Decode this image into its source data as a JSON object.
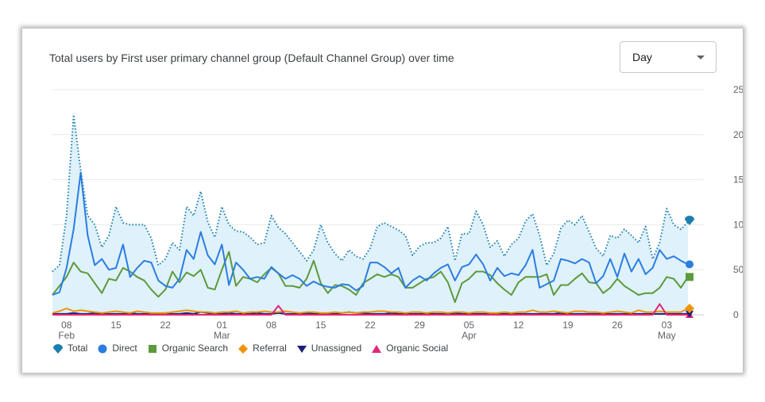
{
  "card": {
    "title": "Total users by First user primary channel group (Default Channel Group) over time",
    "granularity_select": "Day"
  },
  "colors": {
    "Total": "#1a7fae",
    "Direct": "#2b7de1",
    "Organic Search": "#5c9a3c",
    "Referral": "#f0940a",
    "Unassigned": "#1f1f7a",
    "Organic Social": "#e0287a",
    "band": "#dff1fb",
    "grid": "#e5e8eb"
  },
  "legend": [
    {
      "name": "Total",
      "icon": "teardrop-marker-icon"
    },
    {
      "name": "Direct",
      "icon": "circle-marker-icon"
    },
    {
      "name": "Organic Search",
      "icon": "square-marker-icon"
    },
    {
      "name": "Referral",
      "icon": "diamond-marker-icon"
    },
    {
      "name": "Unassigned",
      "icon": "triangle-down-marker-icon"
    },
    {
      "name": "Organic Social",
      "icon": "triangle-up-marker-icon"
    }
  ],
  "chart_data": {
    "type": "line",
    "title": "Total users by First user primary channel group (Default Channel Group) over time",
    "xlabel": "",
    "ylabel": "",
    "x_start": "2024-02-06",
    "x_end": "2024-05-06",
    "x_ticks": [
      {
        "date": "2024-02-08",
        "day": "08",
        "month": "Feb"
      },
      {
        "date": "2024-02-15",
        "day": "15",
        "month": ""
      },
      {
        "date": "2024-02-22",
        "day": "22",
        "month": ""
      },
      {
        "date": "2024-03-01",
        "day": "01",
        "month": "Mar"
      },
      {
        "date": "2024-03-08",
        "day": "08",
        "month": ""
      },
      {
        "date": "2024-03-15",
        "day": "15",
        "month": ""
      },
      {
        "date": "2024-03-22",
        "day": "22",
        "month": ""
      },
      {
        "date": "2024-03-29",
        "day": "29",
        "month": ""
      },
      {
        "date": "2024-04-05",
        "day": "05",
        "month": "Apr"
      },
      {
        "date": "2024-04-12",
        "day": "12",
        "month": ""
      },
      {
        "date": "2024-04-19",
        "day": "19",
        "month": ""
      },
      {
        "date": "2024-04-26",
        "day": "26",
        "month": ""
      },
      {
        "date": "2024-05-03",
        "day": "03",
        "month": "May"
      }
    ],
    "y_ticks": [
      0,
      50,
      100,
      150,
      200,
      250
    ],
    "ylim": [
      0,
      250
    ],
    "y_axis_side": "right",
    "grid": true,
    "legend_position": "bottom",
    "series": [
      {
        "name": "Total",
        "style": "dotted",
        "fill": true,
        "values": [
          48,
          55,
          110,
          222,
          160,
          110,
          100,
          75,
          88,
          120,
          102,
          100,
          100,
          100,
          85,
          55,
          62,
          80,
          72,
          120,
          110,
          137,
          103,
          86,
          120,
          100,
          93,
          92,
          86,
          78,
          80,
          110,
          97,
          90,
          80,
          70,
          60,
          72,
          100,
          80,
          68,
          60,
          72,
          65,
          62,
          74,
          98,
          102,
          98,
          94,
          88,
          66,
          76,
          80,
          80,
          85,
          98,
          60,
          90,
          90,
          115,
          100,
          75,
          82,
          65,
          78,
          85,
          104,
          112,
          88,
          55,
          68,
          96,
          105,
          100,
          110,
          92,
          74,
          65,
          88,
          85,
          95,
          88,
          80,
          98,
          62,
          80,
          118,
          100,
          95,
          103
        ]
      },
      {
        "name": "Direct",
        "style": "solid",
        "values": [
          22,
          25,
          52,
          95,
          158,
          88,
          55,
          62,
          50,
          52,
          78,
          42,
          52,
          60,
          58,
          38,
          32,
          30,
          40,
          72,
          62,
          92,
          66,
          56,
          78,
          33,
          58,
          50,
          40,
          42,
          40,
          53,
          46,
          40,
          44,
          40,
          32,
          37,
          33,
          31,
          30,
          34,
          33,
          27,
          32,
          58,
          58,
          53,
          46,
          52,
          30,
          38,
          43,
          38,
          46,
          52,
          56,
          38,
          53,
          56,
          67,
          56,
          38,
          52,
          43,
          46,
          44,
          55,
          72,
          30,
          34,
          38,
          62,
          60,
          57,
          62,
          58,
          35,
          43,
          62,
          42,
          68,
          48,
          62,
          45,
          52,
          72,
          62,
          65,
          60,
          56
        ]
      },
      {
        "name": "Organic Search",
        "style": "solid",
        "values": [
          22,
          32,
          42,
          58,
          48,
          46,
          35,
          24,
          40,
          38,
          52,
          48,
          42,
          38,
          28,
          20,
          28,
          48,
          36,
          47,
          43,
          50,
          30,
          28,
          50,
          70,
          32,
          42,
          40,
          36,
          45,
          52,
          46,
          32,
          32,
          30,
          40,
          60,
          35,
          24,
          33,
          32,
          28,
          22,
          35,
          40,
          45,
          42,
          45,
          42,
          30,
          30,
          35,
          40,
          42,
          48,
          36,
          14,
          35,
          40,
          48,
          48,
          44,
          35,
          28,
          22,
          36,
          42,
          42,
          42,
          45,
          22,
          33,
          33,
          40,
          46,
          36,
          35,
          24,
          30,
          40,
          32,
          27,
          22,
          24,
          24,
          30,
          42,
          40,
          30,
          42
        ]
      },
      {
        "name": "Referral",
        "style": "solid",
        "values": [
          2,
          4,
          7,
          4,
          5,
          4,
          3,
          2,
          3,
          4,
          3,
          2,
          4,
          3,
          2,
          2,
          2,
          3,
          4,
          5,
          4,
          3,
          3,
          2,
          3,
          3,
          4,
          2,
          3,
          3,
          4,
          3,
          3,
          4,
          3,
          2,
          3,
          3,
          2,
          2,
          3,
          2,
          3,
          2,
          3,
          3,
          4,
          4,
          3,
          3,
          2,
          3,
          3,
          2,
          3,
          3,
          2,
          3,
          3,
          2,
          3,
          3,
          2,
          2,
          3,
          2,
          3,
          3,
          5,
          3,
          3,
          4,
          3,
          2,
          4,
          4,
          3,
          3,
          2,
          3,
          4,
          3,
          2,
          5,
          3,
          3,
          4,
          3,
          3,
          3,
          7
        ]
      },
      {
        "name": "Unassigned",
        "style": "solid",
        "values": [
          1,
          1,
          1,
          2,
          1,
          1,
          2,
          1,
          1,
          1,
          1,
          2,
          1,
          1,
          1,
          1,
          2,
          1,
          1,
          2,
          1,
          3,
          2,
          1,
          1,
          2,
          1,
          1,
          1,
          2,
          1,
          1,
          2,
          1,
          1,
          1,
          2,
          1,
          1,
          1,
          1,
          2,
          3,
          2,
          2,
          1,
          1,
          1,
          2,
          1,
          1,
          1,
          1,
          2,
          1,
          1,
          1,
          2,
          1,
          1,
          1,
          1,
          1,
          1,
          1,
          1,
          1,
          1,
          1,
          1,
          1,
          1,
          2,
          1,
          1,
          1,
          1,
          1,
          1,
          1,
          1,
          1,
          1,
          1,
          1,
          1,
          1,
          1,
          1,
          1,
          1
        ]
      },
      {
        "name": "Organic Social",
        "style": "solid",
        "values": [
          0,
          0,
          0,
          0,
          0,
          0,
          0,
          0,
          0,
          0,
          0,
          0,
          0,
          0,
          0,
          0,
          0,
          0,
          0,
          0,
          0,
          0,
          0,
          0,
          0,
          0,
          0,
          0,
          0,
          0,
          0,
          0,
          10,
          0,
          0,
          0,
          0,
          0,
          0,
          0,
          0,
          0,
          0,
          0,
          0,
          0,
          0,
          0,
          0,
          0,
          0,
          0,
          0,
          0,
          0,
          0,
          0,
          0,
          0,
          0,
          0,
          0,
          0,
          0,
          0,
          0,
          0,
          0,
          0,
          0,
          0,
          0,
          0,
          0,
          0,
          0,
          0,
          0,
          0,
          0,
          0,
          0,
          0,
          0,
          0,
          0,
          12,
          0,
          0,
          0,
          0
        ]
      }
    ]
  }
}
